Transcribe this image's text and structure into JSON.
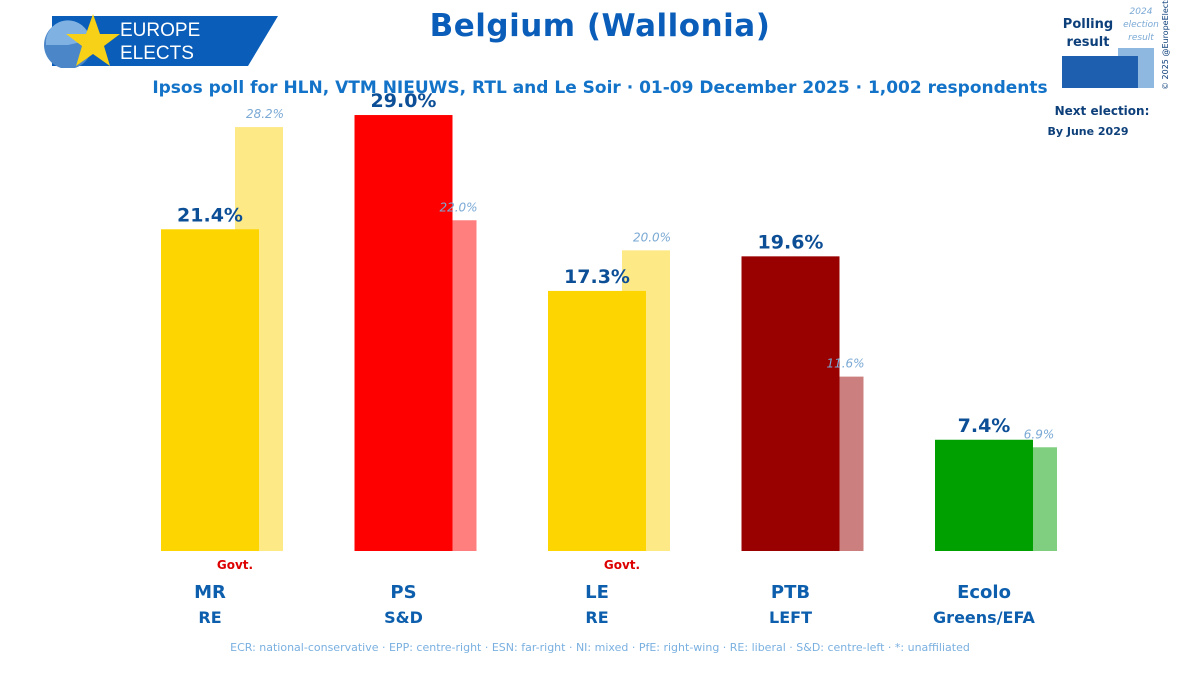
{
  "logo": {
    "line1": "EUROPE",
    "line2": "ELECTS"
  },
  "header": {
    "title": "Belgium (Wallonia)",
    "subtitle": "Ipsos poll for HLN, VTM NIEUWS, RTL and Le Soir · 01-09 December 2025 · 1,002 respondents"
  },
  "legend": {
    "polling_label_line1": "Polling",
    "polling_label_line2": "result",
    "election_label_line1": "2024",
    "election_label_line2": "election",
    "election_label_line3": "result",
    "copyright": "© 2025 @EuropeElects",
    "next_election_label": "Next election:",
    "next_election_value": "By June 2029"
  },
  "colors": {
    "brand_blue": "#0a5db8",
    "label_blue": "#0d5fae",
    "previous_label": "#7aa9d4"
  },
  "chart_data": {
    "type": "bar",
    "ylim": [
      0,
      30
    ],
    "categories": [
      "MR",
      "PS",
      "LE",
      "PTB",
      "Ecolo"
    ],
    "groups": [
      "RE",
      "S&D",
      "RE",
      "LEFT",
      "Greens/EFA"
    ],
    "series": [
      {
        "name": "Polling result",
        "values": [
          21.4,
          29.0,
          17.3,
          19.6,
          7.4
        ],
        "labels": [
          "21.4%",
          "29.0%",
          "17.3%",
          "19.6%",
          "7.4%"
        ]
      },
      {
        "name": "2024 election result",
        "values": [
          28.2,
          22.0,
          20.0,
          11.6,
          6.9
        ],
        "labels": [
          "28.2%",
          "22.0%",
          "20.0%",
          "11.6%",
          "6.9%"
        ]
      }
    ],
    "bar_colors": [
      "#fdd500",
      "#ff0000",
      "#fdd500",
      "#990000",
      "#00a000"
    ],
    "previous_colors": [
      "#fee987",
      "#ff7f7f",
      "#fee987",
      "#cc7f7f",
      "#80cf80"
    ],
    "govt_flags": [
      true,
      false,
      true,
      false,
      false
    ],
    "govt_label": "Govt."
  },
  "footnote": "ECR: national-conservative · EPP: centre-right · ESN: far-right · NI: mixed · PfE: right-wing · RE: liberal · S&D: centre-left · *: unaffiliated"
}
